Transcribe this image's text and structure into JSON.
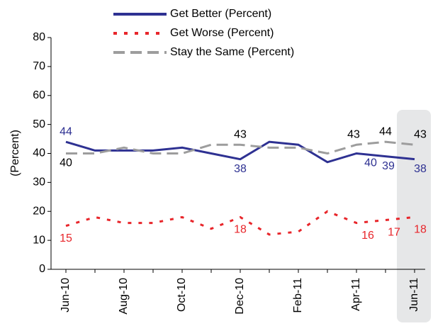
{
  "chart_data": {
    "type": "line",
    "y_label": "(Percent)",
    "categories": [
      "Jun-10",
      null,
      "Aug-10",
      null,
      "Oct-10",
      null,
      "Dec-10",
      null,
      "Feb-11",
      null,
      "Apr-11",
      null,
      "Jun-11"
    ],
    "ylim": [
      0,
      80
    ],
    "yticks": [
      0,
      10,
      20,
      30,
      40,
      50,
      60,
      70,
      80
    ],
    "series": [
      {
        "name": "Get Better (Percent)",
        "color": "#2e3192",
        "line_style": "solid",
        "values": [
          44,
          41,
          41,
          41,
          42,
          40,
          38,
          44,
          43,
          37,
          40,
          39,
          38
        ],
        "value_labels": [
          "44",
          null,
          null,
          null,
          null,
          null,
          "38",
          null,
          null,
          null,
          "40",
          "39",
          "38"
        ]
      },
      {
        "name": "Get Worse (Percent)",
        "color": "#e8262b",
        "line_style": "dotted",
        "values": [
          15,
          18,
          16,
          16,
          18,
          14,
          18,
          12,
          13,
          20,
          16,
          17,
          18
        ],
        "value_labels": [
          "15",
          null,
          null,
          null,
          null,
          null,
          "18",
          null,
          null,
          null,
          "16",
          "17",
          "18"
        ]
      },
      {
        "name": "Stay the Same (Percent)",
        "color": "#9d9d9d",
        "line_style": "dashed",
        "values": [
          40,
          40,
          42,
          40,
          40,
          43,
          43,
          42,
          42,
          40,
          43,
          44,
          43
        ],
        "value_labels": [
          "40",
          null,
          null,
          null,
          null,
          null,
          "43",
          null,
          null,
          null,
          "43",
          "44",
          "43"
        ]
      }
    ]
  }
}
